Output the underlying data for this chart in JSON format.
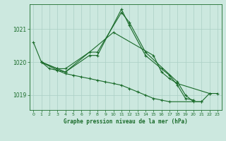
{
  "title": "",
  "xlabel": "Graphe pression niveau de la mer (hPa)",
  "background_color": "#cce8df",
  "grid_color": "#aacfc5",
  "line_color": "#1a6b2a",
  "xlim": [
    -0.5,
    23.5
  ],
  "ylim": [
    1018.55,
    1021.75
  ],
  "yticks": [
    1019,
    1020,
    1021
  ],
  "xticks": [
    0,
    1,
    2,
    3,
    4,
    5,
    6,
    7,
    8,
    9,
    10,
    11,
    12,
    13,
    14,
    15,
    16,
    17,
    18,
    19,
    20,
    21,
    22,
    23
  ],
  "line1_x": [
    0,
    1,
    3,
    4,
    7,
    8,
    11,
    12,
    14,
    18,
    19,
    20,
    21,
    22,
    23
  ],
  "line1_y": [
    1020.6,
    1020.0,
    1019.8,
    1019.8,
    1020.3,
    1020.3,
    1021.5,
    1021.2,
    1020.3,
    1019.4,
    1019.0,
    1018.8,
    1018.8,
    1019.05,
    1019.05
  ],
  "line2_x": [
    1,
    3,
    4,
    7,
    8,
    11,
    12,
    14,
    16,
    17,
    18,
    19,
    20
  ],
  "line2_y": [
    1020.0,
    1019.8,
    1019.7,
    1020.2,
    1020.2,
    1021.6,
    1021.1,
    1020.2,
    1019.8,
    1019.6,
    1019.3,
    1018.9,
    1018.85
  ],
  "line3_x": [
    1,
    3,
    4,
    10,
    15,
    16,
    17,
    18,
    22
  ],
  "line3_y": [
    1020.0,
    1019.75,
    1019.7,
    1020.9,
    1020.2,
    1019.7,
    1019.5,
    1019.35,
    1019.05
  ],
  "line4_x": [
    1,
    2,
    3,
    4,
    5,
    6,
    7,
    8,
    9,
    10,
    11,
    12,
    13,
    14,
    15,
    16,
    17,
    21
  ],
  "line4_y": [
    1020.0,
    1019.8,
    1019.75,
    1019.65,
    1019.6,
    1019.55,
    1019.5,
    1019.45,
    1019.4,
    1019.35,
    1019.3,
    1019.2,
    1019.1,
    1019.0,
    1018.9,
    1018.85,
    1018.8,
    1018.8
  ]
}
